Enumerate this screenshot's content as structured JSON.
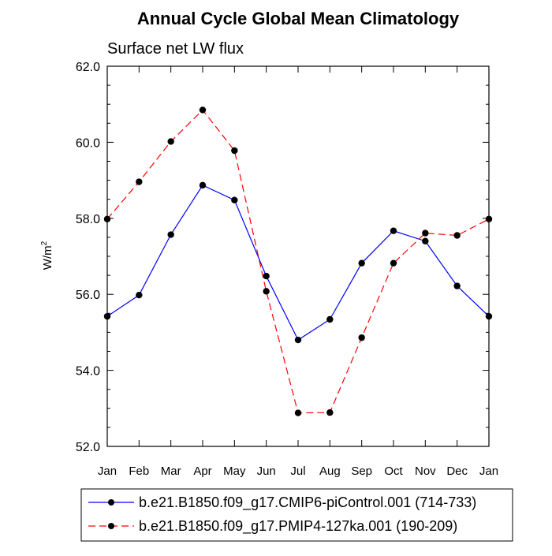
{
  "chart_data": {
    "type": "line",
    "title": "Annual Cycle Global Mean Climatology",
    "subtitle": "Surface net LW flux",
    "ylabel_main": "W/m",
    "ylabel_sup": "2",
    "xlabel": "",
    "categories": [
      "Jan",
      "Feb",
      "Mar",
      "Apr",
      "May",
      "Jun",
      "Jul",
      "Aug",
      "Sep",
      "Oct",
      "Nov",
      "Dec",
      "Jan"
    ],
    "ylim": [
      52.0,
      62.0
    ],
    "yticks": [
      "52.0",
      "54.0",
      "56.0",
      "58.0",
      "60.0",
      "62.0"
    ],
    "grid": false,
    "legend_position": "bottom",
    "series": [
      {
        "name": "b.e21.B1850.f09_g17.CMIP6-piControl.001 (714-733)",
        "color": "#0000ff",
        "dash": "solid",
        "values": [
          55.42,
          55.98,
          57.57,
          58.87,
          58.48,
          56.48,
          54.8,
          55.34,
          56.82,
          57.67,
          57.4,
          56.22,
          55.42
        ]
      },
      {
        "name": "b.e21.B1850.f09_g17.PMIP4-127ka.001 (190-209)",
        "color": "#ff0000",
        "dash": "dashed",
        "values": [
          57.98,
          58.96,
          60.02,
          60.85,
          59.78,
          56.08,
          52.88,
          52.89,
          54.86,
          56.82,
          57.61,
          57.55,
          57.98
        ]
      }
    ]
  }
}
